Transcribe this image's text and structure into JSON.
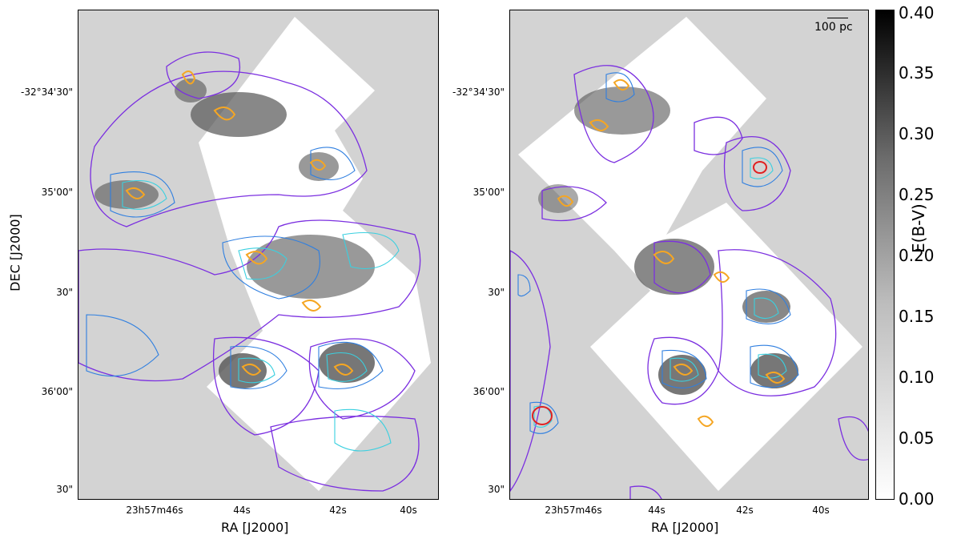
{
  "axes": {
    "y_title": "DEC [J2000]",
    "x_title": "RA [J2000]",
    "y_ticks": [
      "-32°34'30\"",
      "35'00\"",
      "30\"",
      "36'00\"",
      "30\""
    ],
    "x_ticks_left": [
      "23h57m46s",
      "44s",
      "42s",
      "40s"
    ],
    "x_ticks_right": [
      "23h57m46s",
      "44s",
      "42s",
      "40s"
    ]
  },
  "scale_bar": {
    "label": "100 pc"
  },
  "colorbar": {
    "label": "E(B-V)",
    "ticks": [
      "0.40",
      "0.35",
      "0.30",
      "0.25",
      "0.20",
      "0.15",
      "0.10",
      "0.05",
      "0.00"
    ]
  },
  "colors": {
    "background": "#d3d3d3",
    "contour_violet": "#7b2fe0",
    "contour_blue": "#2f7fe0",
    "contour_cyan": "#3ad0e0",
    "contour_green": "#7de8b0",
    "contour_orange": "#f5a623",
    "contour_red": "#e02020"
  }
}
